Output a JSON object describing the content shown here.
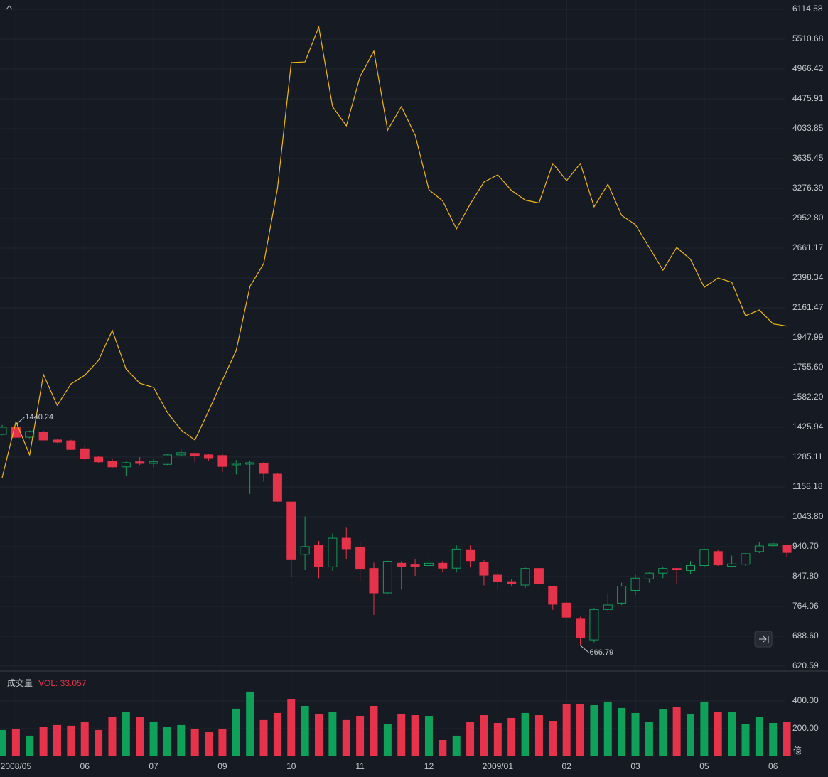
{
  "chart_data": [
    {
      "type": "candlestick",
      "log_scale": true,
      "grid": true,
      "up_color": "#0fa05a",
      "down_color": "#e5334b",
      "categories": [
        null,
        "2008/05",
        null,
        null,
        null,
        null,
        "06",
        null,
        null,
        null,
        null,
        "07",
        null,
        null,
        null,
        null,
        "09",
        null,
        null,
        null,
        null,
        "10",
        null,
        null,
        null,
        null,
        "11",
        null,
        null,
        null,
        null,
        "12",
        null,
        null,
        null,
        null,
        "2009/01",
        null,
        null,
        null,
        null,
        "02",
        null,
        null,
        null,
        null,
        "03",
        null,
        null,
        null,
        null,
        "05",
        null,
        null,
        null,
        null,
        "06",
        null
      ],
      "open": [
        1391,
        1426,
        1377,
        1402,
        1364,
        1360,
        1323,
        1285,
        1267,
        1242,
        1264,
        1257,
        1253,
        1295,
        1302,
        1295,
        1292,
        1251,
        1254,
        1257,
        1211,
        1099,
        916,
        945,
        877,
        969,
        938,
        872,
        801,
        888,
        883,
        881,
        888,
        873,
        931,
        892,
        852,
        833,
        823,
        872,
        819,
        773,
        731,
        680,
        756,
        773,
        808,
        841,
        858,
        872,
        866,
        881,
        925,
        879,
        885,
        925,
        944,
        945
      ],
      "high": [
        1437,
        1440.24,
        1410,
        1408,
        1368,
        1365,
        1335,
        1290,
        1280,
        1265,
        1285,
        1280,
        1300,
        1320,
        1305,
        1300,
        1300,
        1272,
        1270,
        1262,
        1214,
        1102,
        1045,
        960,
        985,
        1005,
        955,
        890,
        896,
        895,
        900,
        920,
        895,
        945,
        945,
        897,
        860,
        840,
        875,
        880,
        821,
        775,
        737,
        760,
        800,
        830,
        853,
        862,
        878,
        873,
        895,
        935,
        932,
        912,
        920,
        955,
        958,
        948
      ],
      "low": [
        1387,
        1370,
        1372,
        1362,
        1350,
        1318,
        1272,
        1258,
        1236,
        1205,
        1250,
        1240,
        1250,
        1290,
        1262,
        1270,
        1220,
        1210,
        1130,
        1180,
        1100,
        845,
        867,
        843,
        865,
        900,
        835,
        742,
        798,
        810,
        850,
        870,
        860,
        860,
        875,
        822,
        812,
        820,
        815,
        810,
        755,
        733,
        666.79,
        674,
        750,
        768,
        795,
        830,
        843,
        825,
        855,
        878,
        880,
        877,
        880,
        920,
        938,
        908
      ],
      "close": [
        1426,
        1377,
        1405,
        1364,
        1354,
        1320,
        1279,
        1264,
        1242,
        1260,
        1257,
        1264,
        1295,
        1305,
        1292,
        1282,
        1244,
        1257,
        1260,
        1214,
        1102,
        899,
        941,
        877,
        969,
        934,
        870,
        801,
        894,
        877,
        879,
        888,
        873,
        933,
        896,
        852,
        833,
        827,
        872,
        827,
        770,
        736,
        686,
        756,
        768,
        820,
        843,
        858,
        872,
        868,
        881,
        932,
        883,
        886,
        918,
        943,
        950,
        922
      ],
      "series": [
        {
          "color": "#f0b90b",
          "values": [
            1196,
            1454,
            1295,
            1713,
            1539,
            1658,
            1709,
            1800,
            1998,
            1747,
            1662,
            1638,
            1502,
            1412,
            1364,
            1510,
            1679,
            1863,
            2329,
            2521,
            3276,
            5078,
            5089,
            5747,
            4355,
            4074,
            4834,
            5286,
            4014,
            4355,
            3945,
            3260,
            3137,
            2845,
            3103,
            3350,
            3434,
            3252,
            3145,
            3114,
            3573,
            3367,
            3573,
            3073,
            3325,
            2982,
            2888,
            2668,
            2464,
            2668,
            2559,
            2322,
            2398,
            2363,
            2103,
            2145,
            2044,
            2028
          ]
        }
      ],
      "ylim": [
        610,
        6314
      ],
      "yticks": [
        620.59,
        {
          "value": 688.6,
          "label": "688.60"
        },
        764.06,
        {
          "value": 847.8,
          "label": "847.80"
        },
        {
          "value": 940.7,
          "label": "940.70"
        },
        {
          "value": 1043.8,
          "label": "1043.80"
        },
        1158.18,
        1285.11,
        1425.94,
        {
          "value": 1582.2,
          "label": "1582.20"
        },
        {
          "value": 1755.6,
          "label": "1755.60"
        },
        1947.99,
        2161.47,
        2398.34,
        2661.17,
        {
          "value": 2952.8,
          "label": "2952.80"
        },
        3276.39,
        3635.45,
        4033.85,
        4475.91,
        4966.42,
        5510.68,
        6114.58
      ]
    },
    {
      "type": "bar",
      "title": "成交量",
      "annotation": "VOL: 33.057",
      "unit": "億",
      "values": [
        190,
        195,
        149,
        215,
        226,
        221,
        246,
        190,
        287,
        323,
        282,
        251,
        210,
        226,
        200,
        174,
        200,
        344,
        467,
        262,
        313,
        415,
        364,
        303,
        323,
        262,
        292,
        364,
        231,
        303,
        297,
        292,
        118,
        149,
        246,
        297,
        241,
        277,
        313,
        297,
        256,
        374,
        379,
        369,
        395,
        349,
        313,
        246,
        338,
        354,
        303,
        395,
        318,
        318,
        231,
        282,
        241,
        251
      ],
      "ylim": [
        0,
        615
      ],
      "yticks": [
        {
          "value": 200,
          "label": "200.00"
        },
        {
          "value": 400,
          "label": "400.00"
        }
      ]
    }
  ]
}
